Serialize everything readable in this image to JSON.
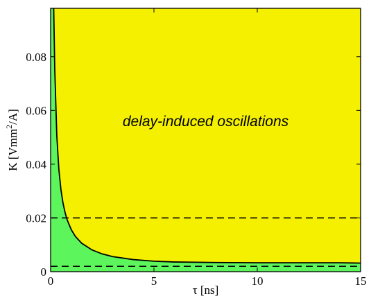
{
  "chart_data": {
    "type": "area",
    "title": "",
    "xlabel": "τ [ns]",
    "ylabel_parts": [
      "K [Vmm",
      "2",
      "/A]"
    ],
    "xlim": [
      0,
      15
    ],
    "ylim": [
      0,
      0.098
    ],
    "x_ticks": [
      0,
      5,
      10,
      15
    ],
    "x_tick_labels": [
      "0",
      "5",
      "10",
      "15"
    ],
    "y_ticks": [
      0,
      0.02,
      0.04,
      0.06,
      0.08
    ],
    "y_tick_labels": [
      "0",
      "0.02",
      "0.04",
      "0.06",
      "0.08"
    ],
    "grid": false,
    "regions": [
      {
        "label": "delay-induced oscillations",
        "color": "#f5f000",
        "side": "above"
      },
      {
        "label": "",
        "color": "#5cf55c",
        "side": "below"
      }
    ],
    "boundary": {
      "x": [
        0.15,
        0.2,
        0.3,
        0.4,
        0.5,
        0.6,
        0.7,
        0.8,
        1.0,
        1.2,
        1.5,
        2.0,
        2.5,
        3.0,
        4.0,
        5.0,
        6.0,
        8.0,
        10.0,
        12.0,
        14.0,
        15.0
      ],
      "y": [
        0.098,
        0.0755,
        0.0505,
        0.038,
        0.0305,
        0.0255,
        0.022,
        0.0193,
        0.0156,
        0.0131,
        0.0106,
        0.0081,
        0.0066,
        0.0056,
        0.0045,
        0.0039,
        0.0036,
        0.0034,
        0.0033,
        0.0033,
        0.0033,
        0.0032
      ]
    },
    "reference_lines": [
      {
        "orientation": "horizontal",
        "y": 0.02,
        "style": "dashed"
      },
      {
        "orientation": "horizontal",
        "y": 0.002,
        "style": "dashed"
      }
    ],
    "annotations": [
      {
        "text": "delay-induced oscillations",
        "x": 7.5,
        "y": 0.056
      }
    ]
  }
}
